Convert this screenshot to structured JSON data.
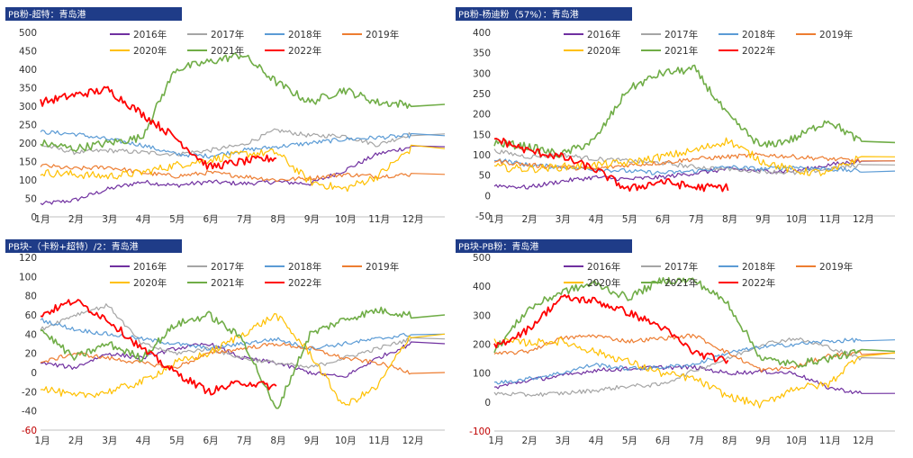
{
  "colors": {
    "2016": "#7030a0",
    "2017": "#a5a5a5",
    "2018": "#5b9bd5",
    "2019": "#ed7d31",
    "2020": "#ffc000",
    "2021": "#70ad47",
    "2022": "#ff0000",
    "title_bg": "#1f3c88",
    "axis": "#bfbfbf"
  },
  "chart_data": [
    {
      "type": "line",
      "title": "PB粉-超特：青岛港",
      "categories": [
        "1月",
        "2月",
        "3月",
        "4月",
        "5月",
        "6月",
        "7月",
        "8月",
        "9月",
        "10月",
        "11月",
        "12月"
      ],
      "ylim": [
        0,
        500
      ],
      "yticks": [
        0,
        50,
        100,
        150,
        200,
        250,
        300,
        350,
        400,
        450,
        500
      ],
      "series": [
        {
          "name": "2016年",
          "values": [
            35,
            45,
            75,
            95,
            85,
            95,
            90,
            95,
            90,
            125,
            170,
            190
          ]
        },
        {
          "name": "2017年",
          "values": [
            195,
            175,
            180,
            175,
            170,
            180,
            195,
            235,
            220,
            220,
            195,
            225
          ]
        },
        {
          "name": "2018年",
          "values": [
            230,
            225,
            210,
            195,
            170,
            165,
            180,
            190,
            200,
            210,
            215,
            220
          ]
        },
        {
          "name": "2019年",
          "values": [
            140,
            130,
            135,
            120,
            110,
            120,
            110,
            100,
            105,
            115,
            110,
            115
          ]
        },
        {
          "name": "2020年",
          "values": [
            120,
            115,
            110,
            120,
            140,
            155,
            170,
            175,
            95,
            75,
            110,
            185
          ]
        },
        {
          "name": "2021年",
          "values": [
            200,
            185,
            200,
            215,
            400,
            420,
            440,
            365,
            310,
            345,
            310,
            305
          ]
        },
        {
          "name": "2022年",
          "values": [
            310,
            330,
            345,
            280,
            215,
            135,
            150,
            160,
            null,
            null,
            null,
            null
          ]
        }
      ]
    },
    {
      "type": "line",
      "title": "PB粉-杨迪粉（57%）：青岛港",
      "categories": [
        "1月",
        "2月",
        "3月",
        "4月",
        "5月",
        "6月",
        "7月",
        "8月",
        "9月",
        "10月",
        "11月",
        "12月"
      ],
      "ylim": [
        -50,
        400
      ],
      "yticks": [
        -50,
        0,
        50,
        100,
        150,
        200,
        250,
        300,
        350,
        400
      ],
      "series": [
        {
          "name": "2016年",
          "values": [
            25,
            20,
            35,
            45,
            40,
            45,
            55,
            65,
            60,
            60,
            75,
            85
          ]
        },
        {
          "name": "2017年",
          "values": [
            110,
            95,
            100,
            90,
            85,
            80,
            70,
            65,
            60,
            55,
            65,
            75
          ]
        },
        {
          "name": "2018年",
          "values": [
            90,
            75,
            70,
            65,
            60,
            55,
            60,
            70,
            65,
            70,
            65,
            60
          ]
        },
        {
          "name": "2019年",
          "values": [
            85,
            75,
            70,
            65,
            75,
            80,
            90,
            95,
            100,
            95,
            90,
            85
          ]
        },
        {
          "name": "2020年",
          "values": [
            70,
            65,
            70,
            75,
            80,
            95,
            110,
            135,
            85,
            60,
            55,
            95
          ]
        },
        {
          "name": "2021年",
          "values": [
            130,
            120,
            100,
            135,
            260,
            300,
            310,
            195,
            120,
            140,
            185,
            130
          ]
        },
        {
          "name": "2022年",
          "values": [
            140,
            110,
            95,
            65,
            15,
            35,
            20,
            20,
            null,
            null,
            null,
            null
          ]
        }
      ]
    },
    {
      "type": "line",
      "title": "PB块-（卡粉+超特）/2：青岛港",
      "categories": [
        "1月",
        "2月",
        "3月",
        "4月",
        "5月",
        "6月",
        "7月",
        "8月",
        "9月",
        "10月",
        "11月",
        "12月"
      ],
      "ylim": [
        -60,
        120
      ],
      "yticks": [
        -60,
        -40,
        -20,
        0,
        20,
        40,
        60,
        80,
        100,
        120
      ],
      "series": [
        {
          "name": "2016年",
          "values": [
            10,
            5,
            20,
            15,
            25,
            30,
            15,
            10,
            0,
            -5,
            15,
            30
          ]
        },
        {
          "name": "2017年",
          "values": [
            45,
            60,
            70,
            30,
            20,
            25,
            15,
            10,
            5,
            15,
            25,
            35
          ]
        },
        {
          "name": "2018年",
          "values": [
            55,
            45,
            40,
            35,
            30,
            25,
            30,
            35,
            25,
            30,
            35,
            40
          ]
        },
        {
          "name": "2019年",
          "values": [
            10,
            20,
            15,
            10,
            5,
            20,
            25,
            30,
            25,
            15,
            10,
            0
          ]
        },
        {
          "name": "2020年",
          "values": [
            -15,
            -25,
            -20,
            -10,
            10,
            20,
            40,
            60,
            20,
            -35,
            -15,
            40
          ]
        },
        {
          "name": "2021年",
          "values": [
            45,
            15,
            30,
            15,
            50,
            60,
            35,
            -40,
            40,
            55,
            65,
            60
          ]
        },
        {
          "name": "2022年",
          "values": [
            60,
            75,
            55,
            25,
            0,
            -20,
            -10,
            -15,
            null,
            null,
            null,
            null
          ]
        }
      ]
    },
    {
      "type": "line",
      "title": "PB块-PB粉：青岛港",
      "categories": [
        "1月",
        "2月",
        "3月",
        "4月",
        "5月",
        "6月",
        "7月",
        "8月",
        "9月",
        "10月",
        "11月",
        "12月"
      ],
      "ylim": [
        -100,
        500
      ],
      "yticks": [
        -100,
        0,
        100,
        200,
        300,
        400,
        500
      ],
      "series": [
        {
          "name": "2016年",
          "values": [
            50,
            75,
            90,
            110,
            115,
            120,
            120,
            100,
            105,
            100,
            50,
            30
          ]
        },
        {
          "name": "2017年",
          "values": [
            30,
            25,
            30,
            40,
            55,
            60,
            110,
            150,
            200,
            220,
            190,
            150
          ]
        },
        {
          "name": "2018年",
          "values": [
            65,
            80,
            100,
            130,
            115,
            120,
            130,
            170,
            190,
            200,
            210,
            215
          ]
        },
        {
          "name": "2019年",
          "values": [
            165,
            175,
            220,
            230,
            210,
            220,
            230,
            170,
            110,
            120,
            160,
            170
          ]
        },
        {
          "name": "2020年",
          "values": [
            210,
            205,
            210,
            175,
            140,
            100,
            80,
            20,
            -10,
            50,
            60,
            170
          ]
        },
        {
          "name": "2021年",
          "values": [
            175,
            320,
            380,
            410,
            360,
            420,
            420,
            340,
            150,
            130,
            150,
            175
          ]
        },
        {
          "name": "2022年",
          "values": [
            190,
            250,
            360,
            350,
            310,
            260,
            170,
            140,
            null,
            null,
            null,
            null
          ]
        }
      ]
    }
  ]
}
